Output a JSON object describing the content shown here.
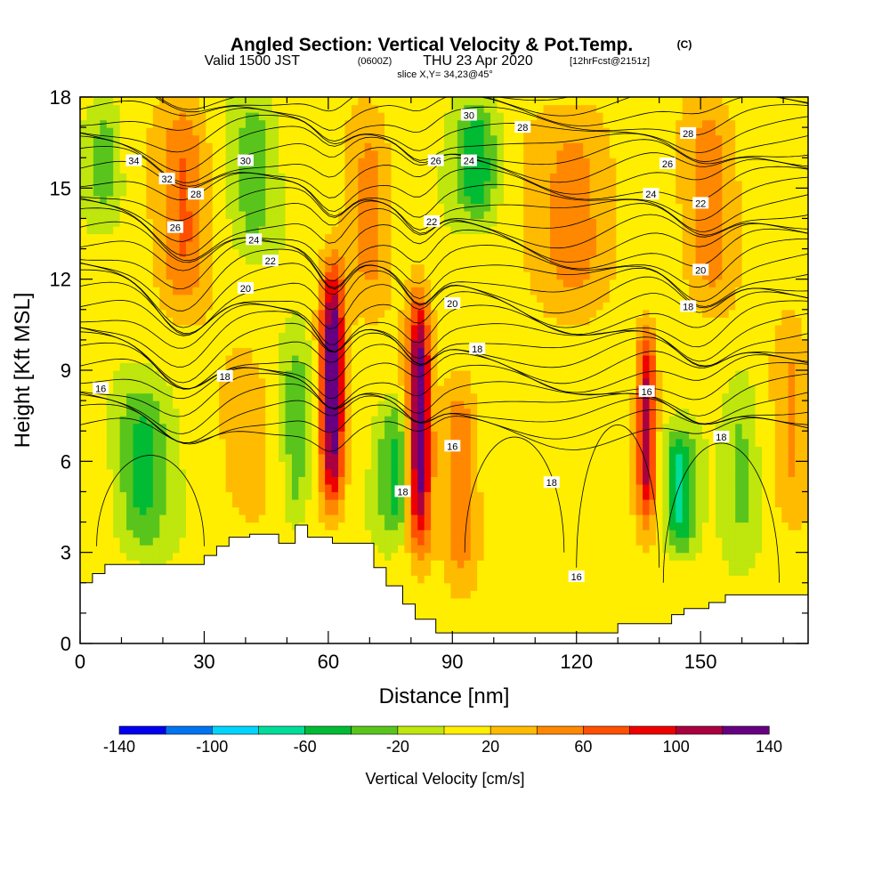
{
  "header": {
    "title_main": "Angled Section: Vertical Velocity & Pot.Temp.",
    "title_unit": "(C)",
    "valid_a": "Valid 1500 JST",
    "valid_b": "(0600Z)",
    "valid_c": "THU 23 Apr 2020",
    "valid_d": "[12hrFcst@2151z]",
    "slice": "slice X,Y= 34,23@45°"
  },
  "chart_data": {
    "type": "heatmap",
    "title": "Angled Section: Vertical Velocity & Pot.Temp.",
    "xlabel": "Distance [nm]",
    "ylabel": "Height [Kft MSL]",
    "xlim": [
      0,
      176
    ],
    "ylim": [
      0,
      18
    ],
    "x_ticks": [
      0,
      30,
      60,
      90,
      120,
      150
    ],
    "y_ticks": [
      0,
      3,
      6,
      9,
      12,
      15,
      18
    ],
    "colorbar": {
      "label": "Vertical Velocity [cm/s]",
      "levels": [
        -140,
        -120,
        -100,
        -80,
        -60,
        -40,
        -20,
        0,
        20,
        40,
        60,
        80,
        100,
        120,
        140
      ],
      "tick_labels": [
        "-140",
        "-100",
        "-60",
        "-20",
        "20",
        "60",
        "100",
        "140"
      ],
      "tick_values": [
        -140,
        -100,
        -60,
        -20,
        20,
        60,
        100,
        140
      ],
      "colors": [
        "#0000ee",
        "#0073f0",
        "#00d4ff",
        "#00dd9a",
        "#00bb33",
        "#59c51c",
        "#bfe60d",
        "#ffee00",
        "#ffbb00",
        "#ff8800",
        "#ff5000",
        "#ee0000",
        "#aa0040",
        "#660080"
      ]
    },
    "updrafts": [
      {
        "x": 61,
        "zmin": 4.5,
        "zmax": 12.5,
        "w": 3,
        "peak": 135
      },
      {
        "x": 82,
        "zmin": 3.0,
        "zmax": 11.5,
        "w": 2.8,
        "peak": 122
      },
      {
        "x": 137,
        "zmin": 4.0,
        "zmax": 10.5,
        "w": 2.3,
        "peak": 100
      },
      {
        "x": 92,
        "zmin": 2.0,
        "zmax": 9.0,
        "w": 4,
        "peak": 45
      },
      {
        "x": 25,
        "zmin": 11.0,
        "zmax": 18,
        "w": 6,
        "peak": 50
      },
      {
        "x": 70,
        "zmin": 11.0,
        "zmax": 18,
        "w": 5,
        "peak": 35
      },
      {
        "x": 120,
        "zmin": 11.0,
        "zmax": 18,
        "w": 10,
        "peak": 40
      },
      {
        "x": 152,
        "zmin": 11.0,
        "zmax": 18,
        "w": 6,
        "peak": 40
      },
      {
        "x": 172,
        "zmin": 4.0,
        "zmax": 11,
        "w": 4,
        "peak": 30
      },
      {
        "x": 40,
        "zmin": 4.0,
        "zmax": 10,
        "w": 6,
        "peak": 18
      }
    ],
    "downdrafts": [
      {
        "x": 15,
        "zmin": 3.0,
        "zmax": 8.5,
        "w": 6,
        "peak": -50
      },
      {
        "x": 76,
        "zmin": 3.5,
        "zmax": 8,
        "w": 4,
        "peak": -55
      },
      {
        "x": 145,
        "zmin": 3.0,
        "zmax": 7,
        "w": 3.5,
        "peak": -75
      },
      {
        "x": 52,
        "zmin": 4.0,
        "zmax": 10,
        "w": 3,
        "peak": -40
      },
      {
        "x": 96,
        "zmin": 14.0,
        "zmax": 18,
        "w": 5,
        "peak": -65
      },
      {
        "x": 6,
        "zmin": 14.0,
        "zmax": 18,
        "w": 4,
        "peak": -35
      },
      {
        "x": 42,
        "zmin": 13.0,
        "zmax": 18,
        "w": 5,
        "peak": -35
      },
      {
        "x": 160,
        "zmin": 3.0,
        "zmax": 9,
        "w": 4,
        "peak": -30
      }
    ],
    "terrain": {
      "x": [
        0,
        3,
        3,
        6,
        6,
        13,
        13,
        30,
        30,
        33,
        33,
        36,
        36,
        41,
        41,
        48,
        48,
        52,
        52,
        55,
        55,
        61,
        61,
        64,
        64,
        71,
        71,
        74,
        74,
        78,
        78,
        81,
        81,
        86,
        86,
        90,
        90,
        130,
        130,
        143,
        143,
        146,
        146,
        152,
        152,
        156,
        156,
        176
      ],
      "z": [
        2.0,
        2.0,
        2.3,
        2.3,
        2.6,
        2.6,
        2.6,
        2.6,
        2.9,
        2.9,
        3.2,
        3.2,
        3.5,
        3.5,
        3.6,
        3.6,
        3.3,
        3.3,
        3.9,
        3.9,
        3.5,
        3.5,
        3.3,
        3.3,
        3.3,
        3.3,
        2.5,
        2.5,
        1.9,
        1.9,
        1.3,
        1.3,
        0.8,
        0.8,
        0.35,
        0.35,
        0.35,
        0.35,
        0.65,
        0.65,
        0.95,
        0.95,
        1.15,
        1.15,
        1.35,
        1.35,
        1.6,
        1.6
      ]
    },
    "pot_temp_labels": [
      {
        "text": "34",
        "x": 13,
        "z": 15.9
      },
      {
        "text": "32",
        "x": 21,
        "z": 15.3
      },
      {
        "text": "30",
        "x": 40,
        "z": 15.9
      },
      {
        "text": "28",
        "x": 28,
        "z": 14.8
      },
      {
        "text": "26",
        "x": 23,
        "z": 13.7
      },
      {
        "text": "24",
        "x": 42,
        "z": 13.3
      },
      {
        "text": "22",
        "x": 46,
        "z": 12.6
      },
      {
        "text": "20",
        "x": 40,
        "z": 11.7
      },
      {
        "text": "18",
        "x": 35,
        "z": 8.8
      },
      {
        "text": "16",
        "x": 5,
        "z": 8.4
      },
      {
        "text": "30",
        "x": 94,
        "z": 17.4
      },
      {
        "text": "28",
        "x": 107,
        "z": 17.0
      },
      {
        "text": "26",
        "x": 86,
        "z": 15.9
      },
      {
        "text": "24",
        "x": 94,
        "z": 15.9
      },
      {
        "text": "22",
        "x": 85,
        "z": 13.9
      },
      {
        "text": "20",
        "x": 90,
        "z": 11.2
      },
      {
        "text": "18",
        "x": 96,
        "z": 9.7
      },
      {
        "text": "16",
        "x": 90,
        "z": 6.5
      },
      {
        "text": "18",
        "x": 78,
        "z": 5.0
      },
      {
        "text": "18",
        "x": 114,
        "z": 5.3
      },
      {
        "text": "16",
        "x": 120,
        "z": 2.2
      },
      {
        "text": "28",
        "x": 147,
        "z": 16.8
      },
      {
        "text": "26",
        "x": 142,
        "z": 15.8
      },
      {
        "text": "24",
        "x": 138,
        "z": 14.8
      },
      {
        "text": "22",
        "x": 150,
        "z": 14.5
      },
      {
        "text": "20",
        "x": 150,
        "z": 12.3
      },
      {
        "text": "18",
        "x": 147,
        "z": 11.1
      },
      {
        "text": "16",
        "x": 137,
        "z": 8.3
      },
      {
        "text": "18",
        "x": 155,
        "z": 6.8
      }
    ]
  }
}
